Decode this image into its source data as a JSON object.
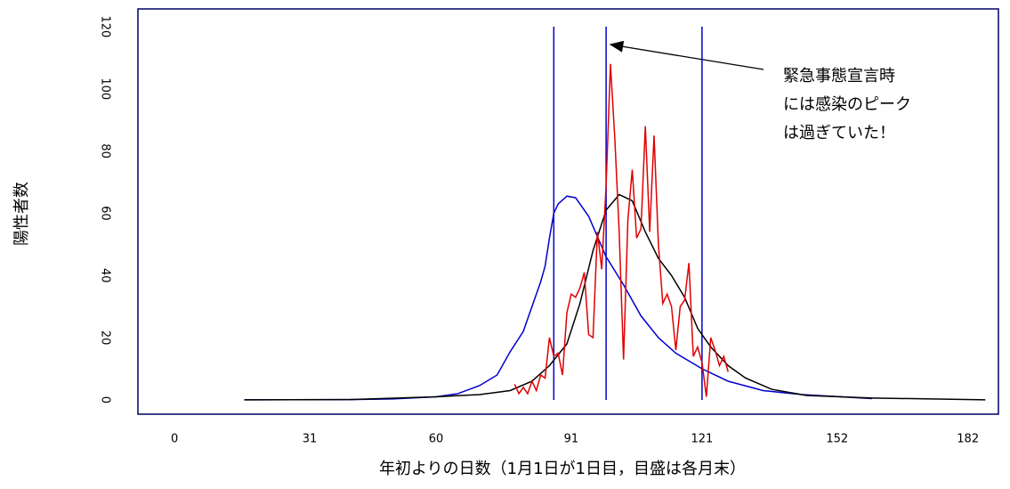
{
  "chart_data": {
    "type": "line",
    "x_label": "年初よりの日数（1月1日が1日目，目盛は各月末）",
    "y_label": "陽性者数",
    "annotation": [
      "緊急事態宣言時",
      "には感染のピーク",
      "は過ぎていた！"
    ],
    "xlim": [
      -8.4,
      189
    ],
    "ylim": [
      -4.6,
      125.7
    ],
    "xticks": [
      0,
      31,
      60,
      91,
      121,
      152,
      182
    ],
    "yticks": [
      0,
      20,
      40,
      60,
      80,
      100,
      120
    ],
    "vlines": {
      "color": "#0000cc",
      "values": [
        87,
        99,
        121
      ]
    },
    "series": [
      {
        "color": "#0000cc",
        "x": [
          16,
          40,
          50,
          60,
          65,
          70,
          74,
          77,
          80,
          82,
          84,
          85,
          86,
          87,
          88,
          90,
          92,
          95,
          99,
          103,
          107,
          111,
          115,
          121,
          127,
          135,
          144,
          160
        ],
        "values": [
          0,
          0.1,
          0.3,
          1,
          2,
          4.6,
          8,
          15.5,
          22,
          30,
          38,
          43,
          52,
          60,
          63,
          65.5,
          65,
          59,
          46,
          37,
          27,
          20,
          15,
          10,
          6,
          3,
          1.7,
          0.4
        ]
      },
      {
        "color": "#000000",
        "x": [
          16,
          40,
          60,
          70,
          77,
          82,
          86,
          90,
          93,
          96,
          99,
          102,
          105,
          108,
          111,
          114,
          117,
          120,
          123,
          127,
          131,
          137,
          145,
          160,
          186
        ],
        "values": [
          0,
          0.1,
          1,
          1.7,
          3,
          6,
          11,
          18,
          31,
          48,
          61,
          66,
          64,
          54,
          45.5,
          40,
          33,
          23,
          17,
          11,
          7,
          3.4,
          1.4,
          0.6,
          0
        ]
      },
      {
        "color": "#e00000",
        "x": [
          78,
          79,
          80,
          81,
          82,
          83,
          84,
          85,
          86,
          87,
          88,
          89,
          90,
          91,
          92,
          93,
          94,
          95,
          96,
          97,
          98,
          99,
          100,
          101,
          102,
          103,
          104,
          105,
          106,
          107,
          108,
          109,
          110,
          111,
          112,
          113,
          114,
          115,
          116,
          117,
          118,
          119,
          120,
          121,
          122,
          123,
          124,
          125,
          126,
          127
        ],
        "values": [
          5,
          2,
          4,
          2,
          6,
          3,
          8,
          7,
          20,
          14,
          15,
          8,
          28,
          34,
          33,
          36,
          41,
          21,
          20,
          54,
          42,
          69,
          108,
          84,
          54,
          13,
          58,
          74,
          52,
          55,
          88,
          54,
          85,
          50,
          31,
          34,
          30,
          16,
          30,
          32,
          44,
          14,
          17,
          12,
          1,
          20,
          16,
          11,
          14,
          9
        ]
      }
    ]
  }
}
